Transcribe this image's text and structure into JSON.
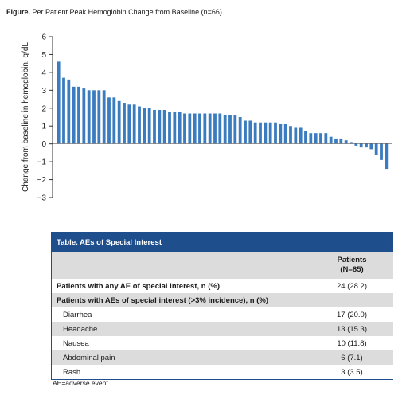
{
  "figure": {
    "label": "Figure.",
    "title": "Per Patient Peak Hemoglobin Change from Baseline (n=66)"
  },
  "chart_data": {
    "type": "bar",
    "title": "Per Patient Peak Hemoglobin Change from Baseline (n=66)",
    "ylabel": "Change from baseline in hemoglobin, g/dL",
    "xlabel": "",
    "ylim": [
      -3,
      6
    ],
    "yticks": [
      "6",
      "5",
      "4",
      "3",
      "2",
      "1",
      "0",
      "−1",
      "−2",
      "−3"
    ],
    "grid": false,
    "bar_color": "#3b7bbf",
    "values": [
      4.6,
      3.7,
      3.6,
      3.2,
      3.2,
      3.1,
      3.0,
      3.0,
      3.0,
      3.0,
      2.6,
      2.6,
      2.4,
      2.3,
      2.2,
      2.2,
      2.1,
      2.0,
      2.0,
      1.9,
      1.9,
      1.9,
      1.8,
      1.8,
      1.8,
      1.7,
      1.7,
      1.7,
      1.7,
      1.7,
      1.7,
      1.7,
      1.7,
      1.6,
      1.6,
      1.6,
      1.5,
      1.3,
      1.3,
      1.2,
      1.2,
      1.2,
      1.2,
      1.2,
      1.1,
      1.1,
      1.0,
      0.9,
      0.9,
      0.7,
      0.6,
      0.6,
      0.6,
      0.6,
      0.4,
      0.3,
      0.3,
      0.2,
      0.1,
      -0.1,
      -0.2,
      -0.2,
      -0.3,
      -0.6,
      -0.9,
      -1.4
    ]
  },
  "table": {
    "title": "Table. AEs of Special Interest",
    "col_header_line1": "Patients",
    "col_header_line2": "(N=85)",
    "rows": [
      {
        "label": "Patients with any AE of special interest, n (%)",
        "value": "24 (28.2)"
      },
      {
        "label": "Patients with AEs of special interest (>3% incidence), n (%)",
        "value": ""
      },
      {
        "label": "Diarrhea",
        "value": "17 (20.0)"
      },
      {
        "label": "Headache",
        "value": "13 (15.3)"
      },
      {
        "label": "Nausea",
        "value": "10 (11.8)"
      },
      {
        "label": "Abdominal pain",
        "value": "6 (7.1)"
      },
      {
        "label": "Rash",
        "value": "3 (3.5)"
      }
    ]
  },
  "footnote": "AE=adverse event"
}
